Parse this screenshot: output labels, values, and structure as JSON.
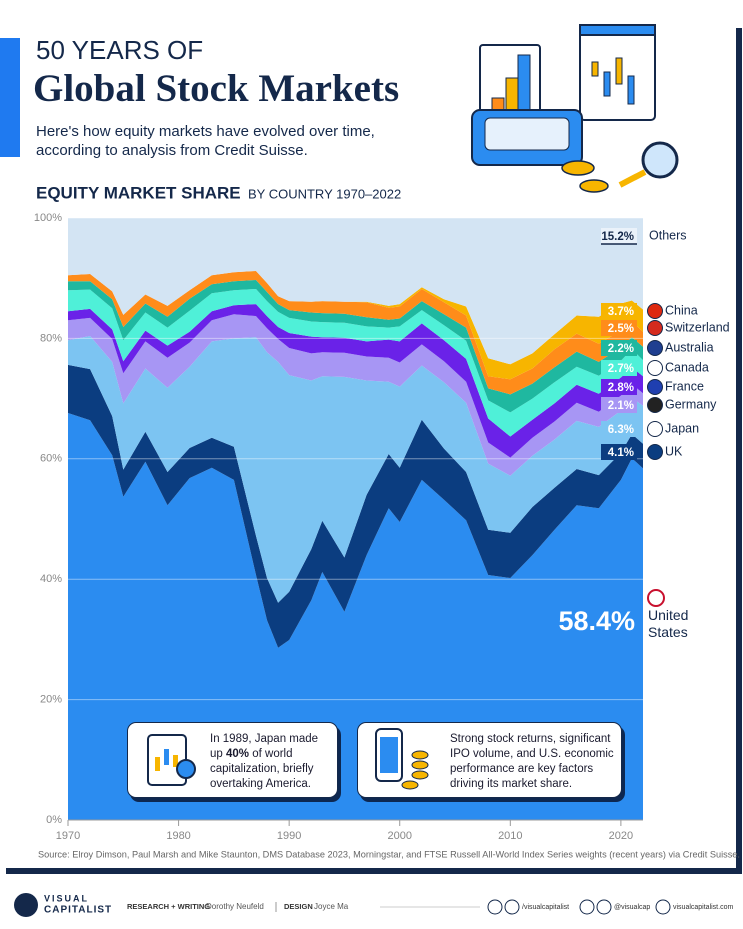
{
  "chart_data": {
    "type": "stacked-area",
    "overline": "50 YEARS OF",
    "title": "Global Stock Markets",
    "subtitle": "Here's how equity markets have evolved over time, according to analysis from Credit Suisse.",
    "heading": "EQUITY MARKET SHARE",
    "heading_sub": "BY COUNTRY 1970–2022",
    "annotations": [
      {
        "parts": [
          "In 1989, Japan made up ",
          "40%",
          " of world capitalization, briefly overtaking America."
        ]
      },
      {
        "parts": [
          "Strong stock returns, significant IPO volume, and U.S. economic performance are key factors driving its market share."
        ]
      }
    ],
    "source": "Source: Elroy Dimson, Paul Marsh and Mike Staunton, DMS Database 2023, Morningstar, and FTSE Russell All-World Index Series weights (recent years) via Credit Suisse.",
    "x": [
      1970,
      1972,
      1974,
      1975,
      1977,
      1979,
      1981,
      1983,
      1985,
      1987,
      1988,
      1989,
      1990,
      1992,
      1993,
      1995,
      1997,
      1999,
      2000,
      2002,
      2004,
      2006,
      2008,
      2010,
      2012,
      2014,
      2016,
      2018,
      2020,
      2021,
      2022
    ],
    "xlim": [
      1970,
      2022
    ],
    "xticks": [
      1970,
      1980,
      1990,
      2000,
      2010,
      2020
    ],
    "ylim": [
      0,
      100
    ],
    "yticks": [
      {
        "value": 0,
        "label": "0%"
      },
      {
        "value": 20,
        "label": "20%"
      },
      {
        "value": 40,
        "label": "40%"
      },
      {
        "value": 60,
        "label": "60%"
      },
      {
        "value": 80,
        "label": "80%"
      },
      {
        "value": 100,
        "label": "100%"
      }
    ],
    "grid": true,
    "series": [
      {
        "name": "United States",
        "color": "#2b8cf0",
        "values": [
          67.6,
          66.4,
          60.6,
          53.7,
          59.5,
          52.3,
          56.8,
          58.5,
          56.5,
          40.7,
          33.2,
          28.6,
          29.9,
          36.5,
          41.2,
          34.6,
          44.0,
          51.8,
          49.5,
          56.5,
          53.2,
          49.8,
          40.7,
          40.2,
          44.0,
          48.2,
          52.3,
          51.8,
          56.5,
          60.1,
          58.4
        ],
        "value_labels": [
          null,
          null,
          null,
          null,
          null,
          null,
          null,
          null,
          null,
          null,
          null,
          null,
          null,
          null,
          null,
          null,
          null,
          null,
          null,
          null,
          null,
          null,
          null,
          null,
          null,
          null,
          null,
          null,
          null,
          null,
          "58.4%"
        ]
      },
      {
        "name": "UK",
        "color": "#0b3d80",
        "values": [
          8.0,
          8.5,
          6.5,
          4.5,
          5.0,
          5.5,
          5.0,
          5.0,
          5.5,
          6.5,
          7.0,
          7.5,
          8.0,
          8.5,
          8.5,
          9.0,
          10.0,
          9.0,
          9.0,
          10.0,
          8.5,
          8.0,
          7.5,
          7.5,
          8.0,
          7.0,
          6.0,
          5.5,
          4.5,
          4.0,
          4.1
        ],
        "value_labels": [
          null,
          null,
          null,
          null,
          null,
          null,
          null,
          null,
          null,
          null,
          null,
          null,
          null,
          null,
          null,
          null,
          null,
          null,
          null,
          null,
          null,
          null,
          null,
          null,
          null,
          null,
          null,
          null,
          null,
          null,
          "4.1%"
        ]
      },
      {
        "name": "Japan",
        "color": "#7cc4f2",
        "values": [
          4.1,
          5.5,
          9.0,
          11.0,
          10.5,
          14.0,
          13.5,
          16.0,
          18.0,
          33.0,
          37.5,
          40.0,
          36.0,
          28.0,
          24.0,
          30.0,
          19.0,
          12.0,
          13.5,
          9.0,
          11.0,
          11.5,
          11.0,
          9.5,
          8.5,
          8.0,
          8.0,
          8.0,
          7.0,
          6.0,
          6.3
        ],
        "value_labels": [
          null,
          null,
          null,
          null,
          null,
          null,
          null,
          null,
          null,
          null,
          null,
          null,
          null,
          null,
          null,
          null,
          null,
          null,
          null,
          null,
          null,
          null,
          null,
          null,
          null,
          null,
          null,
          null,
          null,
          null,
          "6.3%"
        ]
      },
      {
        "name": "Germany",
        "color": "#a796f4",
        "values": [
          3.3,
          3.0,
          3.8,
          5.0,
          4.5,
          5.0,
          4.0,
          3.5,
          4.0,
          3.5,
          4.0,
          3.8,
          4.5,
          4.5,
          4.0,
          4.0,
          4.0,
          4.0,
          4.0,
          3.5,
          3.5,
          3.5,
          3.5,
          3.0,
          3.0,
          3.0,
          3.0,
          2.5,
          2.5,
          2.3,
          2.1
        ],
        "value_labels": [
          null,
          null,
          null,
          null,
          null,
          null,
          null,
          null,
          null,
          null,
          null,
          null,
          null,
          null,
          null,
          null,
          null,
          null,
          null,
          null,
          null,
          null,
          null,
          null,
          null,
          null,
          null,
          null,
          null,
          null,
          "2.1%"
        ]
      },
      {
        "name": "France",
        "color": "#6a22e8",
        "values": [
          1.5,
          1.5,
          1.6,
          2.0,
          1.8,
          2.0,
          1.8,
          1.5,
          1.5,
          2.0,
          2.0,
          2.0,
          2.5,
          2.8,
          2.5,
          2.5,
          2.5,
          3.0,
          3.5,
          3.5,
          3.5,
          3.8,
          4.0,
          3.5,
          3.0,
          3.0,
          3.0,
          3.0,
          3.0,
          2.8,
          2.8
        ],
        "value_labels": [
          null,
          null,
          null,
          null,
          null,
          null,
          null,
          null,
          null,
          null,
          null,
          null,
          null,
          null,
          null,
          null,
          null,
          null,
          null,
          null,
          null,
          null,
          null,
          null,
          null,
          null,
          null,
          null,
          null,
          null,
          "2.8%"
        ]
      },
      {
        "name": "Canada",
        "color": "#4ff0d8",
        "values": [
          3.5,
          3.2,
          3.5,
          3.5,
          3.0,
          3.0,
          3.5,
          3.0,
          2.5,
          2.5,
          2.5,
          2.5,
          2.5,
          2.5,
          2.5,
          2.5,
          2.5,
          2.0,
          2.5,
          2.2,
          2.5,
          3.0,
          3.0,
          4.0,
          3.5,
          3.5,
          3.0,
          3.0,
          2.8,
          3.0,
          2.7
        ],
        "value_labels": [
          null,
          null,
          null,
          null,
          null,
          null,
          null,
          null,
          null,
          null,
          null,
          null,
          null,
          null,
          null,
          null,
          null,
          null,
          null,
          null,
          null,
          null,
          null,
          null,
          null,
          null,
          null,
          null,
          null,
          null,
          "2.7%"
        ]
      },
      {
        "name": "Australia",
        "color": "#1fb8a0",
        "values": [
          1.5,
          1.4,
          1.5,
          2.2,
          1.5,
          1.8,
          2.0,
          1.5,
          1.5,
          1.5,
          1.5,
          1.3,
          1.3,
          1.5,
          1.5,
          1.5,
          1.5,
          1.3,
          1.3,
          1.5,
          1.8,
          2.2,
          2.0,
          3.0,
          2.5,
          2.5,
          2.5,
          2.3,
          2.2,
          2.0,
          2.2
        ],
        "value_labels": [
          null,
          null,
          null,
          null,
          null,
          null,
          null,
          null,
          null,
          null,
          null,
          null,
          null,
          null,
          null,
          null,
          null,
          null,
          null,
          null,
          null,
          null,
          null,
          null,
          null,
          null,
          null,
          null,
          null,
          null,
          "2.2%"
        ]
      },
      {
        "name": "Switzerland",
        "color": "#ff8c1a",
        "values": [
          1.0,
          1.2,
          1.3,
          2.0,
          1.5,
          1.8,
          1.4,
          1.5,
          1.5,
          1.5,
          1.5,
          1.3,
          1.5,
          1.8,
          2.0,
          2.0,
          2.5,
          2.0,
          2.0,
          2.0,
          2.0,
          2.0,
          2.0,
          2.5,
          2.5,
          3.0,
          3.0,
          3.0,
          2.8,
          2.6,
          2.5
        ],
        "value_labels": [
          null,
          null,
          null,
          null,
          null,
          null,
          null,
          null,
          null,
          null,
          null,
          null,
          null,
          null,
          null,
          null,
          null,
          null,
          null,
          null,
          null,
          null,
          null,
          null,
          null,
          null,
          null,
          null,
          null,
          null,
          "2.5%"
        ]
      },
      {
        "name": "China",
        "color": "#f7b500",
        "values": [
          0,
          0,
          0,
          0,
          0,
          0,
          0,
          0,
          0,
          0,
          0,
          0,
          0,
          0,
          0,
          0,
          0.1,
          0.3,
          0.4,
          0.3,
          0.5,
          1.5,
          3.0,
          2.5,
          2.5,
          2.5,
          3.0,
          4.5,
          4.5,
          3.5,
          3.7
        ],
        "value_labels": [
          null,
          null,
          null,
          null,
          null,
          null,
          null,
          null,
          null,
          null,
          null,
          null,
          null,
          null,
          null,
          null,
          null,
          null,
          null,
          null,
          null,
          null,
          null,
          null,
          null,
          null,
          null,
          null,
          null,
          null,
          "3.7%"
        ]
      },
      {
        "name": "Others",
        "color": "#d3e4f3",
        "values": [
          9.5,
          9.3,
          12.2,
          16.1,
          12.7,
          14.6,
          12.0,
          9.5,
          9.0,
          8.8,
          10.8,
          13.0,
          13.8,
          13.9,
          13.8,
          13.9,
          13.9,
          14.6,
          14.3,
          11.5,
          13.5,
          14.7,
          23.3,
          24.3,
          22.5,
          19.3,
          16.2,
          16.4,
          14.2,
          13.7,
          15.2
        ],
        "value_labels": [
          null,
          null,
          null,
          null,
          null,
          null,
          null,
          null,
          null,
          null,
          null,
          null,
          null,
          null,
          null,
          null,
          null,
          null,
          null,
          null,
          null,
          null,
          null,
          null,
          null,
          null,
          null,
          null,
          null,
          null,
          "15.2%"
        ]
      }
    ]
  },
  "footer": {
    "logo_top": "VISUAL",
    "logo_bottom": "CAPITALIST",
    "research_label": "RESEARCH + WRITING",
    "research_name": "Dorothy Neufeld",
    "design_label": "DESIGN",
    "design_name": "Joyce Ma",
    "facebook_youtube": "/visualcapitalist",
    "x_instagram": "@visualcap",
    "website": "visualcapitalist.com"
  }
}
